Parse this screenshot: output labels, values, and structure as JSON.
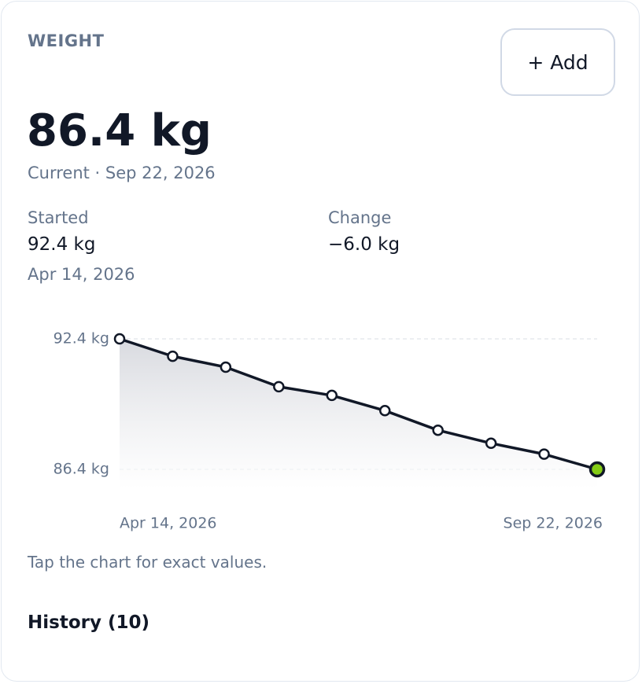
{
  "header": {
    "title": "WEIGHT",
    "button": "+ Add"
  },
  "current": {
    "value": "86.4 kg",
    "label": "Current · Sep 22, 2026"
  },
  "started": {
    "label": "Started",
    "value": "92.4 kg",
    "date": "Apr 14, 2026"
  },
  "change": {
    "label": "Change",
    "value": "−6.0 kg"
  },
  "chart_data": {
    "type": "line",
    "categories": [
      "Apr 14, 2026",
      null,
      null,
      null,
      null,
      null,
      null,
      null,
      null,
      "Sep 22, 2026"
    ],
    "values": [
      92.4,
      91.6,
      91.1,
      90.2,
      89.8,
      89.1,
      88.2,
      87.6,
      87.1,
      86.4
    ],
    "color": "#111827",
    "highlight_color": "#84cc16",
    "ylim": [
      86.4,
      92.4
    ],
    "yticks": [
      {
        "value": 86.4,
        "label": "86.4 kg"
      },
      {
        "value": 92.4,
        "label": "92.4 kg"
      }
    ],
    "grid": true
  },
  "note": "Tap the chart for exact values.",
  "history": {
    "title": "History (10)"
  }
}
